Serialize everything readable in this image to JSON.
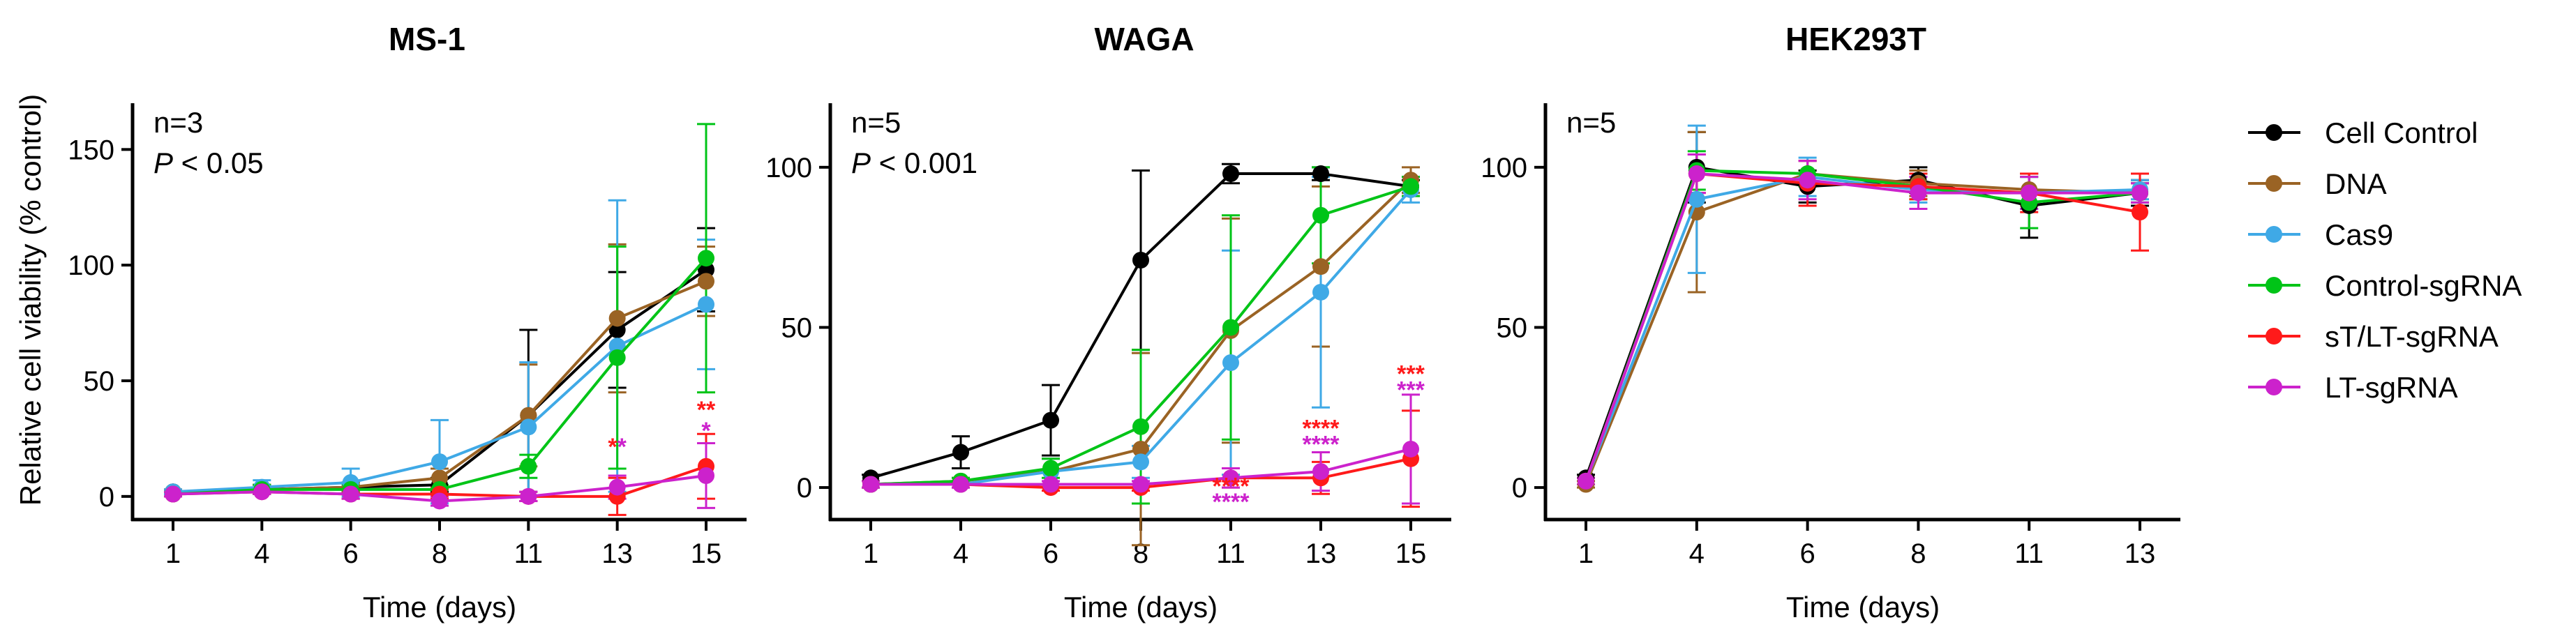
{
  "figure": {
    "ylabel": "Relative cell viability (% control)",
    "series_styles": [
      {
        "name": "Cell Control",
        "color": "#000000"
      },
      {
        "name": "DNA",
        "color": "#9a6324"
      },
      {
        "name": "Cas9",
        "color": "#3fa9e6"
      },
      {
        "name": "Control-sgRNA",
        "color": "#00c417"
      },
      {
        "name": "sT/LT-sgRNA",
        "color": "#ff1a1a"
      },
      {
        "name": "LT-sgRNA",
        "color": "#cc22cc"
      }
    ],
    "legend": {
      "placement": "right",
      "entries": [
        "Cell Control",
        "DNA",
        "Cas9",
        "Control-sgRNA",
        "sT/LT-sgRNA",
        "LT-sgRNA"
      ]
    }
  },
  "chart_data": [
    {
      "type": "line",
      "title": "MS-1",
      "xlabel": "Time (days)",
      "ylabel": "Relative cell viability (% control)",
      "n_text": "n=3",
      "p_label": "P",
      "p_text": " < 0.05",
      "x": [
        "1",
        "4",
        "6",
        "8",
        "11",
        "13",
        "15"
      ],
      "ylim": [
        -10,
        170
      ],
      "yticks": [
        0,
        50,
        100,
        150
      ],
      "series": [
        {
          "name": "Cell Control",
          "color": "#000000",
          "values": [
            2,
            3,
            4,
            5,
            35,
            72,
            98
          ],
          "errors": [
            1,
            2,
            2,
            3,
            37,
            25,
            18
          ]
        },
        {
          "name": "DNA",
          "color": "#9a6324",
          "values": [
            2,
            3,
            4,
            8,
            35,
            77,
            93
          ],
          "errors": [
            1,
            2,
            2,
            4,
            22,
            32,
            15
          ]
        },
        {
          "name": "Cas9",
          "color": "#3fa9e6",
          "values": [
            2,
            4,
            6,
            15,
            30,
            65,
            83
          ],
          "errors": [
            1,
            3,
            6,
            18,
            28,
            63,
            28
          ]
        },
        {
          "name": "Control-sgRNA",
          "color": "#00c417",
          "values": [
            1,
            3,
            3,
            3,
            13,
            60,
            103
          ],
          "errors": [
            1,
            2,
            2,
            2,
            5,
            48,
            58
          ]
        },
        {
          "name": "sT/LT-sgRNA",
          "color": "#ff1a1a",
          "values": [
            1,
            2,
            1,
            1,
            0,
            0,
            13
          ],
          "errors": [
            1,
            1,
            2,
            2,
            2,
            8,
            14
          ]
        },
        {
          "name": "LT-sgRNA",
          "color": "#cc22cc",
          "values": [
            1,
            2,
            1,
            -2,
            0,
            4,
            9
          ],
          "errors": [
            1,
            1,
            2,
            2,
            2,
            5,
            14
          ]
        }
      ],
      "annotations": [
        {
          "x": "13",
          "y": 18,
          "text": "**",
          "colors": [
            "#ff1a1a",
            "#cc22cc"
          ]
        },
        {
          "x": "15",
          "y": 34,
          "text": "**",
          "colors": [
            "#ff1a1a",
            "#ff1a1a"
          ]
        },
        {
          "x": "15",
          "y": 25,
          "text": "*",
          "colors": [
            "#cc22cc"
          ]
        }
      ]
    },
    {
      "type": "line",
      "title": "WAGA",
      "xlabel": "Time (days)",
      "ylabel": "",
      "n_text": "n=5",
      "p_label": "P",
      "p_text": " < 0.001",
      "x": [
        "1",
        "4",
        "6",
        "8",
        "11",
        "13",
        "15"
      ],
      "ylim": [
        -10,
        120
      ],
      "yticks": [
        0,
        50,
        100
      ],
      "series": [
        {
          "name": "Cell Control",
          "color": "#000000",
          "values": [
            3,
            11,
            21,
            71,
            98,
            98,
            94
          ],
          "errors": [
            1,
            5,
            11,
            28,
            3,
            2,
            2
          ]
        },
        {
          "name": "DNA",
          "color": "#9a6324",
          "values": [
            1,
            2,
            5,
            12,
            49,
            69,
            96
          ],
          "errors": [
            1,
            1,
            4,
            30,
            35,
            25,
            4
          ]
        },
        {
          "name": "Cas9",
          "color": "#3fa9e6",
          "values": [
            1,
            1,
            5,
            8,
            39,
            61,
            93
          ],
          "errors": [
            1,
            1,
            4,
            5,
            35,
            36,
            4
          ]
        },
        {
          "name": "Control-sgRNA",
          "color": "#00c417",
          "values": [
            1,
            2,
            6,
            19,
            50,
            85,
            94
          ],
          "errors": [
            1,
            1,
            3,
            24,
            35,
            15,
            3
          ]
        },
        {
          "name": "sT/LT-sgRNA",
          "color": "#ff1a1a",
          "values": [
            1,
            1,
            0,
            0,
            3,
            3,
            9
          ],
          "errors": [
            1,
            1,
            1,
            1,
            3,
            5,
            15
          ]
        },
        {
          "name": "LT-sgRNA",
          "color": "#cc22cc",
          "values": [
            1,
            1,
            1,
            1,
            3,
            5,
            12
          ],
          "errors": [
            1,
            1,
            1,
            1,
            3,
            6,
            17
          ]
        }
      ],
      "annotations": [
        {
          "x": "11",
          "y": -2,
          "text": "****",
          "colors": [
            "#ff1a1a"
          ]
        },
        {
          "x": "11",
          "y": -7,
          "text": "****",
          "colors": [
            "#cc22cc"
          ]
        },
        {
          "x": "13",
          "y": 16,
          "text": "****",
          "colors": [
            "#ff1a1a"
          ]
        },
        {
          "x": "13",
          "y": 11,
          "text": "****",
          "colors": [
            "#cc22cc"
          ]
        },
        {
          "x": "15",
          "y": 33,
          "text": "***",
          "colors": [
            "#ff1a1a"
          ]
        },
        {
          "x": "15",
          "y": 28,
          "text": "***",
          "colors": [
            "#cc22cc"
          ]
        }
      ]
    },
    {
      "type": "line",
      "title": "HEK293T",
      "xlabel": "Time (days)",
      "ylabel": "",
      "n_text": "n=5",
      "p_label": "",
      "p_text": "",
      "x": [
        "1",
        "4",
        "6",
        "8",
        "11",
        "13"
      ],
      "ylim": [
        -10,
        120
      ],
      "yticks": [
        0,
        50,
        100
      ],
      "series": [
        {
          "name": "Cell Control",
          "color": "#000000",
          "values": [
            3,
            100,
            94,
            96,
            88,
            92
          ],
          "errors": [
            1,
            11,
            5,
            4,
            10,
            4
          ]
        },
        {
          "name": "DNA",
          "color": "#9a6324",
          "values": [
            1,
            86,
            98,
            95,
            93,
            92
          ],
          "errors": [
            1,
            25,
            4,
            4,
            5,
            3
          ]
        },
        {
          "name": "Cas9",
          "color": "#3fa9e6",
          "values": [
            2,
            90,
            97,
            93,
            92,
            93
          ],
          "errors": [
            1,
            23,
            6,
            4,
            5,
            3
          ]
        },
        {
          "name": "Control-sgRNA",
          "color": "#00c417",
          "values": [
            2,
            99,
            98,
            94,
            89,
            92
          ],
          "errors": [
            1,
            6,
            4,
            4,
            8,
            3
          ]
        },
        {
          "name": "sT/LT-sgRNA",
          "color": "#ff1a1a",
          "values": [
            2,
            98,
            95,
            94,
            92,
            86
          ],
          "errors": [
            1,
            6,
            7,
            4,
            6,
            12
          ]
        },
        {
          "name": "LT-sgRNA",
          "color": "#cc22cc",
          "values": [
            2,
            98,
            96,
            92,
            92,
            92
          ],
          "errors": [
            1,
            6,
            6,
            5,
            5,
            3
          ]
        }
      ],
      "annotations": []
    }
  ]
}
